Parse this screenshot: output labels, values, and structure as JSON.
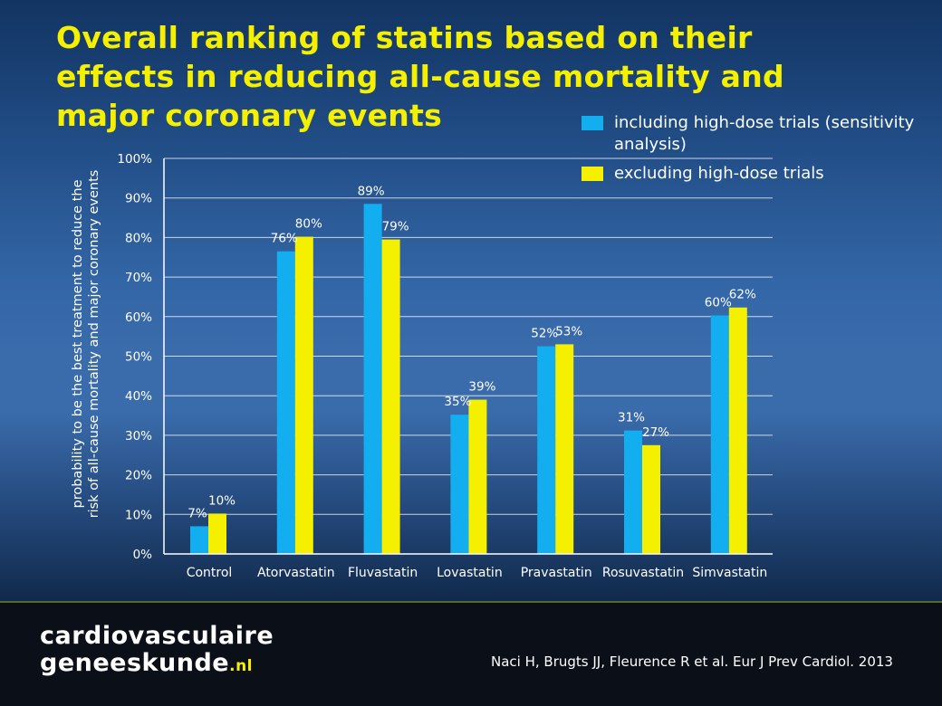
{
  "slide": {
    "title": "Overall ranking of statins based on their effects in reducing all-cause mortality and major coronary events",
    "citation": "Naci H, Brugts JJ, Fleurence R et al. Eur J Prev Cardiol. 2013",
    "logo_line1": "cardiovasculaire",
    "logo_line2": "geneeskunde",
    "logo_suffix": ".nl"
  },
  "legend": [
    {
      "label": "including high-dose trials (sensitivity analysis)",
      "color": "#12aef0"
    },
    {
      "label": "excluding high-dose trials",
      "color": "#f5f000"
    }
  ],
  "chart_data": {
    "type": "bar",
    "title": "",
    "ylabel": "probability to be the best treatment to reduce the risk of all-cause mortality and major coronary events",
    "xlabel": "",
    "ylim": [
      0,
      100
    ],
    "yticks": [
      "0%",
      "10%",
      "20%",
      "30%",
      "40%",
      "50%",
      "60%",
      "70%",
      "80%",
      "90%",
      "100%"
    ],
    "grid": true,
    "legend_position": "top-right",
    "categories": [
      "Control",
      "Atorvastatin",
      "Fluvastatin",
      "Lovastatin",
      "Pravastatin",
      "Rosuvastatin",
      "Simvastatin"
    ],
    "series": [
      {
        "name": "including high-dose trials (sensitivity analysis)",
        "color": "#12aef0",
        "values": [
          7,
          76.5,
          88.5,
          35.2,
          52.5,
          31.2,
          60.3
        ],
        "labels": [
          "7%",
          "76%",
          "89%",
          "35%",
          "52%",
          "31%",
          "60%"
        ]
      },
      {
        "name": "excluding high-dose trials",
        "color": "#f5f000",
        "values": [
          10.2,
          80.2,
          79.5,
          39,
          53,
          27.5,
          62.3
        ],
        "labels": [
          "10%",
          "80%",
          "79%",
          "39%",
          "53%",
          "27%",
          "62%"
        ]
      }
    ]
  }
}
